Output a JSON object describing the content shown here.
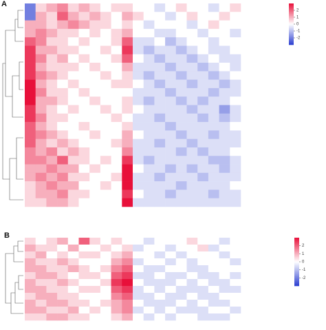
{
  "chart_data": [
    {
      "type": "heatmap",
      "title": "A",
      "colors": [
        "#2c3fd1",
        "#ffffff",
        "#e8103a"
      ],
      "clim": [
        -3,
        3
      ],
      "cticks": [
        -2,
        -1,
        0,
        1,
        2
      ],
      "values": [
        [
          -2,
          0.5,
          1,
          1.5,
          0.5,
          1,
          0.5,
          0,
          0.5,
          0.5,
          0,
          0,
          -0.5,
          0,
          0.5,
          0,
          0,
          -0.5,
          0,
          0.5
        ],
        [
          -2,
          1,
          0.5,
          2,
          1,
          0.5,
          1,
          0.5,
          0,
          1,
          0.5,
          0,
          0,
          -0.5,
          0,
          0.5,
          0,
          0,
          0.5,
          0
        ],
        [
          1,
          1,
          0.5,
          1,
          1.5,
          1,
          0.5,
          0.5,
          0,
          0.5,
          0,
          -0.5,
          0,
          0,
          0,
          -0.5,
          0,
          0.5,
          0,
          0
        ],
        [
          1,
          1.5,
          1,
          0.5,
          0.5,
          0,
          0.5,
          0,
          0.5,
          1,
          0,
          0,
          -0.5,
          -0.5,
          0,
          0,
          -0.5,
          0,
          0,
          -0.5
        ],
        [
          2,
          1.5,
          0.5,
          0.5,
          0,
          0.5,
          0,
          0,
          0.5,
          2,
          -0.5,
          -0.5,
          0,
          -1,
          -0.5,
          0,
          0,
          -0.5,
          0,
          0
        ],
        [
          2.5,
          1,
          1,
          0.5,
          0.5,
          0,
          0,
          0.5,
          0,
          2.5,
          -0.5,
          -1,
          -0.5,
          -0.5,
          -1,
          -0.5,
          0,
          -0.5,
          -0.5,
          0
        ],
        [
          2.5,
          1.5,
          0.5,
          1,
          0,
          0.5,
          0,
          0,
          0.5,
          2,
          0,
          -0.5,
          -1,
          -0.5,
          -0.5,
          -1,
          -0.5,
          0,
          -0.5,
          -0.5
        ],
        [
          2.5,
          1,
          0.5,
          0.5,
          0.5,
          0,
          0.5,
          0,
          0,
          1,
          -0.5,
          -0.5,
          -0.5,
          -1,
          -0.5,
          -0.5,
          -1,
          -0.5,
          0,
          -0.5
        ],
        [
          2.5,
          1.5,
          1,
          0.5,
          0,
          0,
          0,
          0.5,
          0,
          0.5,
          -0.5,
          -1,
          -0.5,
          -0.5,
          -1,
          -0.5,
          -0.5,
          -1,
          -0.5,
          0
        ],
        [
          3,
          1,
          0.5,
          0,
          0.5,
          0,
          0,
          0,
          0.5,
          0.5,
          0,
          -0.5,
          -1,
          -0.5,
          -0.5,
          -1,
          -0.5,
          -0.5,
          -1,
          -0.5
        ],
        [
          3,
          1.5,
          0.5,
          0.5,
          0,
          0.5,
          0,
          0,
          0,
          0,
          -0.5,
          -0.5,
          -0.5,
          -1,
          -0.5,
          -0.5,
          -0.5,
          -1,
          -0.5,
          -0.5
        ],
        [
          3,
          1,
          1,
          0.5,
          0,
          0,
          0.5,
          0,
          0,
          0.5,
          -0.5,
          -1,
          -0.5,
          -0.5,
          -1,
          -0.5,
          -1,
          -0.5,
          -0.5,
          0
        ],
        [
          2.5,
          1,
          0.5,
          0,
          0.5,
          0,
          0,
          0.5,
          0,
          0.5,
          0,
          -0.5,
          -0.5,
          -0.5,
          -0.5,
          -1,
          -0.5,
          -0.5,
          -1.5,
          -0.5
        ],
        [
          2.5,
          1.5,
          0.5,
          0.5,
          0,
          0,
          0,
          0,
          0.5,
          0,
          -0.5,
          -0.5,
          -1,
          -0.5,
          -0.5,
          -0.5,
          -1,
          -0.5,
          -1,
          -0.5
        ],
        [
          2,
          1,
          0.5,
          0,
          0,
          0.5,
          0,
          0,
          0,
          0.5,
          -0.5,
          -0.5,
          -0.5,
          -1,
          -0.5,
          -0.5,
          -0.5,
          -0.5,
          -0.5,
          0
        ],
        [
          2,
          1.5,
          1,
          0.5,
          0,
          0,
          0.5,
          0,
          0,
          1,
          0,
          -0.5,
          -0.5,
          -0.5,
          -1,
          -0.5,
          -0.5,
          -1,
          -0.5,
          -0.5
        ],
        [
          2,
          1,
          0.5,
          1,
          0.5,
          0,
          0,
          0,
          0.5,
          1,
          -0.5,
          -0.5,
          -1,
          -0.5,
          -0.5,
          -1,
          -0.5,
          -0.5,
          -0.5,
          -0.5
        ],
        [
          1.5,
          1,
          1.5,
          0.5,
          1,
          0.5,
          0,
          0,
          0,
          1.5,
          -0.5,
          -0.5,
          -0.5,
          -0.5,
          -1,
          -0.5,
          -1,
          -0.5,
          -0.5,
          0
        ],
        [
          1.5,
          1.5,
          1,
          2,
          0.5,
          0.5,
          0,
          0.5,
          0,
          2.5,
          -0.5,
          -1,
          -0.5,
          -0.5,
          -0.5,
          -0.5,
          -0.5,
          -1,
          -1,
          -0.5
        ],
        [
          1,
          1,
          1.5,
          1,
          1,
          0,
          0.5,
          0,
          0,
          3,
          0,
          -0.5,
          -0.5,
          -1,
          -0.5,
          -1,
          -0.5,
          -0.5,
          -1,
          -0.5
        ],
        [
          1,
          1.5,
          1,
          1.5,
          0.5,
          0.5,
          0,
          0,
          0.5,
          3,
          -0.5,
          -0.5,
          -1,
          -0.5,
          -0.5,
          -0.5,
          -1,
          -0.5,
          -0.5,
          -0.5
        ],
        [
          0.5,
          1,
          1.5,
          1,
          1,
          0,
          0,
          0.5,
          0,
          3,
          -0.5,
          -0.5,
          -0.5,
          -0.5,
          -1,
          -0.5,
          -0.5,
          -0.5,
          -0.5,
          0
        ],
        [
          0.5,
          1,
          1,
          1.5,
          0.5,
          0.5,
          0,
          0,
          0,
          2.5,
          0,
          -0.5,
          -0.5,
          -1,
          -0.5,
          -0.5,
          -0.5,
          -1,
          -0.5,
          -0.5
        ],
        [
          0.5,
          0.5,
          1,
          1,
          0.5,
          0,
          0,
          0,
          0,
          3,
          -0.5,
          -0.5,
          -0.5,
          -0.5,
          -0.5,
          -0.5,
          -0.5,
          -0.5,
          -0.5,
          -0.5
        ]
      ]
    },
    {
      "type": "heatmap",
      "title": "B",
      "colors": [
        "#2c3fd1",
        "#ffffff",
        "#e8103a"
      ],
      "clim": [
        -3,
        3
      ],
      "cticks": [
        -2,
        -1,
        0,
        1,
        2
      ],
      "values": [
        [
          0.5,
          0,
          0.5,
          1,
          0,
          2,
          0.5,
          0,
          0.5,
          0,
          0,
          -0.5,
          0,
          0,
          0,
          0.5,
          0,
          0,
          -0.5,
          0
        ],
        [
          1,
          0.5,
          0.5,
          0,
          1,
          0,
          0,
          0.5,
          0,
          0.5,
          -0.5,
          0,
          0,
          -0.5,
          0,
          0,
          0.5,
          -0.5,
          0,
          0
        ],
        [
          0.5,
          1,
          0,
          0.5,
          0,
          0.5,
          0.5,
          0,
          0.5,
          1,
          0,
          0,
          -0.5,
          0,
          -0.5,
          0,
          0,
          0,
          -0.5,
          0
        ],
        [
          1,
          0.5,
          0.5,
          1,
          0.5,
          0,
          0,
          0,
          1,
          1.5,
          -0.5,
          0,
          0,
          -0.5,
          0,
          -0.5,
          0,
          0,
          0,
          -0.5
        ],
        [
          1,
          1,
          0.5,
          0.5,
          1,
          0.5,
          0,
          0.5,
          1.5,
          2,
          0,
          -0.5,
          -0.5,
          0,
          0,
          -0.5,
          -0.5,
          0,
          0,
          0
        ],
        [
          0.5,
          1,
          1,
          0.5,
          0,
          0.5,
          0.5,
          0,
          2,
          2.5,
          -0.5,
          -0.5,
          0,
          -0.5,
          -0.5,
          0,
          -0.5,
          -0.5,
          0,
          -0.5
        ],
        [
          1,
          0.5,
          0.5,
          1,
          0.5,
          0,
          0,
          0.5,
          2.5,
          3,
          0,
          -0.5,
          -0.5,
          -0.5,
          0,
          -0.5,
          0,
          -0.5,
          -0.5,
          0
        ],
        [
          1,
          1,
          0.5,
          0.5,
          0,
          0.5,
          0.5,
          0,
          2,
          2.5,
          -0.5,
          0,
          -0.5,
          0,
          -0.5,
          -0.5,
          -0.5,
          0,
          -0.5,
          -0.5
        ],
        [
          0.5,
          1,
          1,
          0.5,
          0.5,
          0,
          0,
          0,
          1.5,
          2,
          -0.5,
          -0.5,
          0,
          -0.5,
          -0.5,
          0,
          -0.5,
          -0.5,
          0,
          0
        ],
        [
          1,
          0.5,
          1,
          1,
          0.5,
          0.5,
          0,
          0.5,
          1,
          1.5,
          0,
          -0.5,
          -0.5,
          -0.5,
          0,
          -0.5,
          0,
          -0.5,
          -0.5,
          0
        ],
        [
          1,
          1,
          0.5,
          0.5,
          1,
          0,
          0.5,
          0,
          1,
          1.5,
          -0.5,
          0,
          -0.5,
          0,
          -0.5,
          -0.5,
          -0.5,
          0,
          0,
          -0.5
        ],
        [
          0.5,
          0.5,
          1,
          1,
          0.5,
          0.5,
          0,
          0,
          0.5,
          1,
          0,
          -0.5,
          0,
          -0.5,
          0,
          0,
          -0.5,
          -0.5,
          -0.5,
          0
        ]
      ]
    }
  ]
}
